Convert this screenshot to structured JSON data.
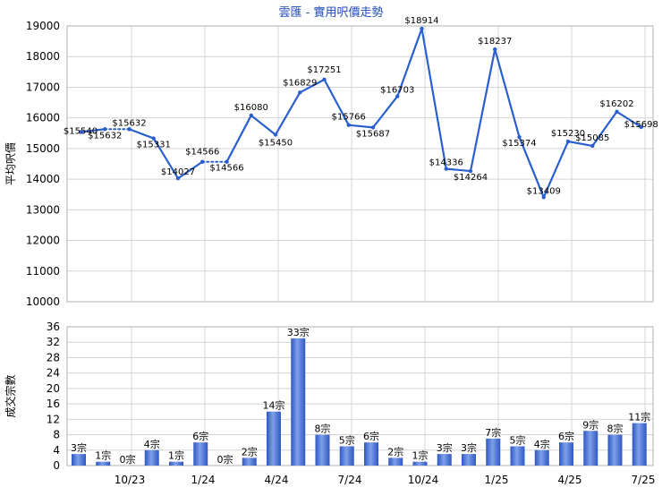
{
  "title": "雲匯 - 實用呎價走勢",
  "colors": {
    "line": "#2a5fcf",
    "bar_light": "#7ea0ea",
    "bar_dark": "#2f57c2",
    "grid": "#d4d4d4",
    "axis_text": "#000000",
    "title_text": "#1f4bb5"
  },
  "chart_data": [
    {
      "type": "line",
      "title": "雲匯 - 實用呎價走勢",
      "ylabel": "平均呎價",
      "ylim": [
        10000,
        19000
      ],
      "yticks": [
        10000,
        11000,
        12000,
        13000,
        14000,
        15000,
        16000,
        17000,
        18000,
        19000
      ],
      "grid": true,
      "x_tick_labels": [
        "10/23",
        "1/24",
        "4/24",
        "7/24",
        "10/24",
        "1/25",
        "4/25",
        "7/25"
      ],
      "series": [
        {
          "values": [
            15540,
            15632,
            15632,
            15331,
            14027,
            14566,
            14566,
            16080,
            15450,
            16829,
            17251,
            15766,
            15687,
            16703,
            18914,
            14336,
            14264,
            18237,
            15374,
            13409,
            15230,
            15085,
            16202,
            15698
          ],
          "labels": [
            "$15540",
            "$15632",
            "$15632",
            "$15331",
            "$14027",
            "$14566",
            "$14566",
            "$16080",
            "$15450",
            "$16829",
            "$17251",
            "$15766",
            "$15687",
            "$16703",
            "$18914",
            "$14336",
            "$14264",
            "$18237",
            "$15374",
            "$13409",
            "$15230",
            "$15085",
            "$16202",
            "$15698"
          ],
          "interpolated_after_index": [
            1,
            5
          ]
        }
      ]
    },
    {
      "type": "bar",
      "ylabel": "成交宗數",
      "ylim": [
        0,
        36
      ],
      "yticks": [
        0,
        4,
        8,
        12,
        16,
        20,
        24,
        28,
        32,
        36
      ],
      "grid": true,
      "x_tick_labels": [
        "10/23",
        "1/24",
        "4/24",
        "7/24",
        "10/24",
        "1/25",
        "4/25",
        "7/25"
      ],
      "values": [
        3,
        1,
        0,
        4,
        1,
        6,
        0,
        2,
        14,
        33,
        8,
        5,
        6,
        2,
        1,
        3,
        3,
        7,
        5,
        4,
        6,
        9,
        8,
        11
      ],
      "labels": [
        "3宗",
        "1宗",
        "0宗",
        "4宗",
        "1宗",
        "6宗",
        "0宗",
        "2宗",
        "14宗",
        "33宗",
        "8宗",
        "5宗",
        "6宗",
        "2宗",
        "1宗",
        "3宗",
        "3宗",
        "7宗",
        "5宗",
        "4宗",
        "6宗",
        "9宗",
        "8宗",
        "11宗"
      ]
    }
  ]
}
